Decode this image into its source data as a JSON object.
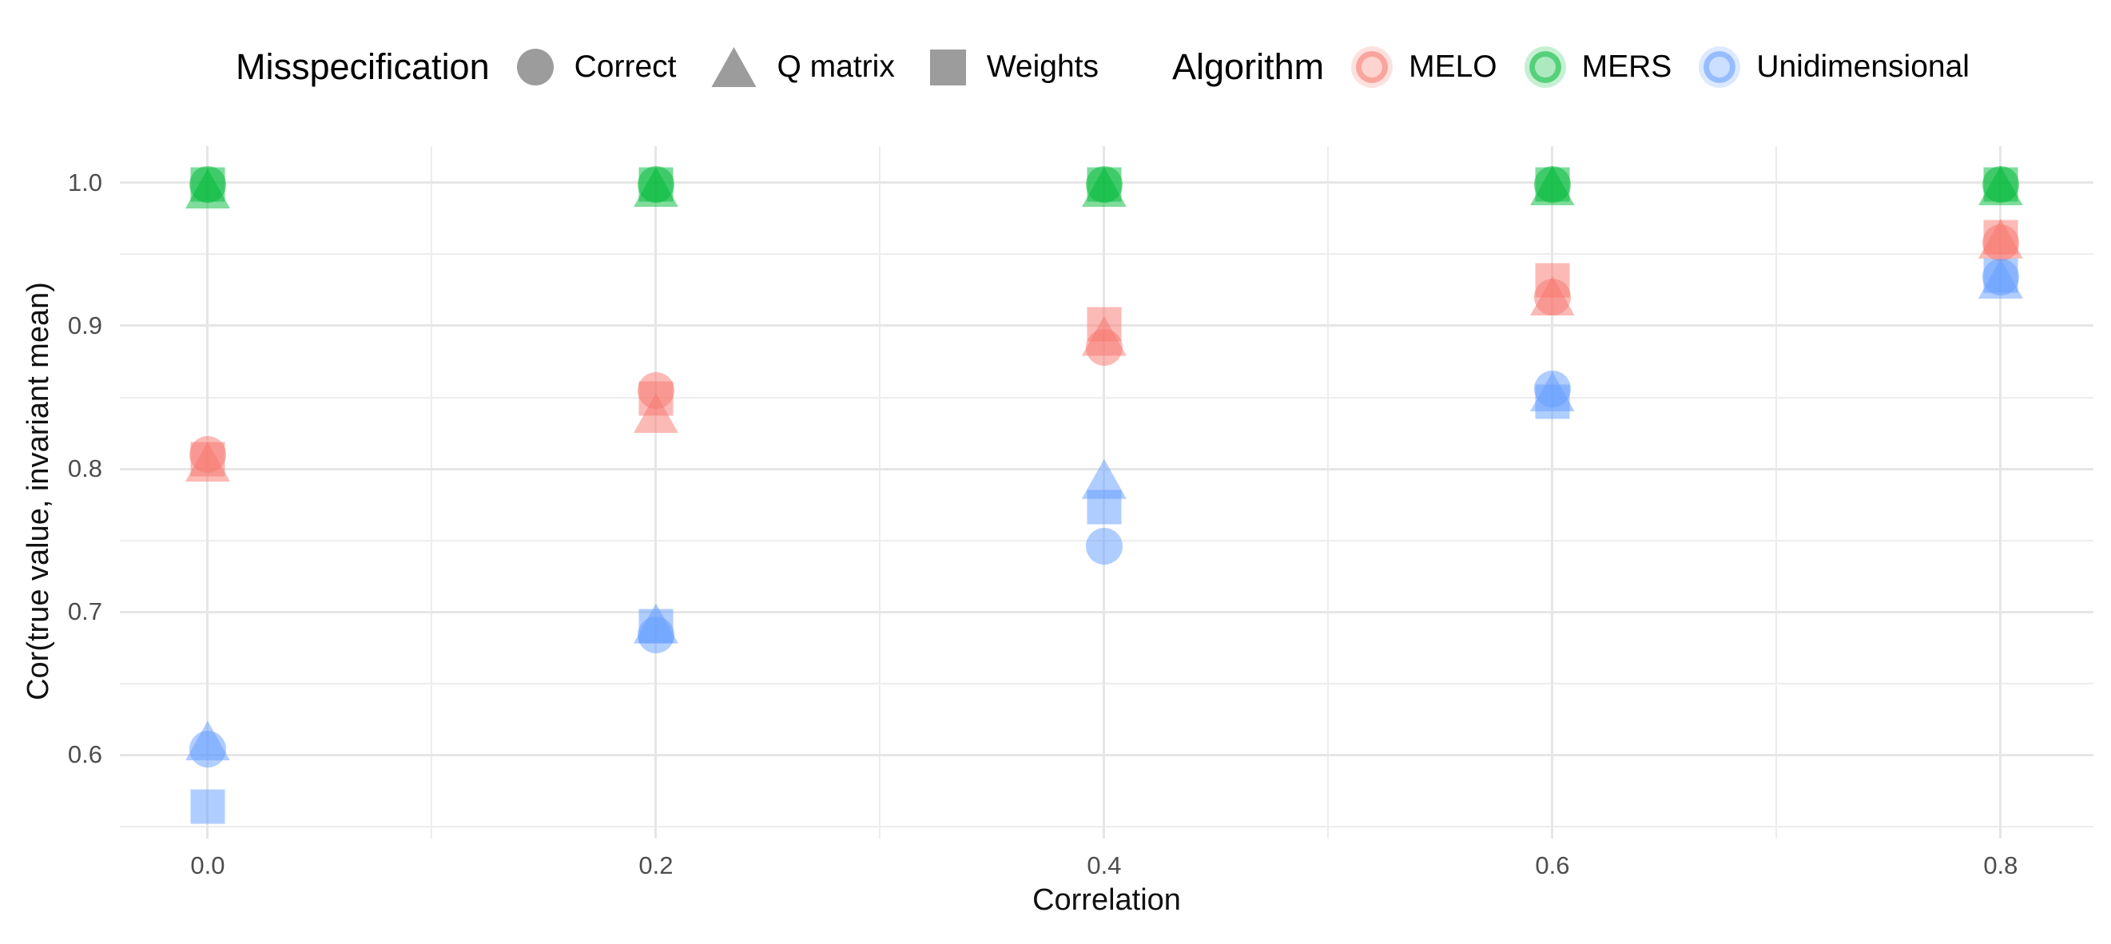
{
  "chart_data": {
    "type": "scatter",
    "title": "",
    "xlabel": "Correlation",
    "ylabel": "Cor(true value, invariant mean)",
    "grid": true,
    "legend_position": "top",
    "x_domain": [
      -0.0392,
      0.8414
    ],
    "y_domain": [
      0.5416,
      1.0256
    ],
    "x_ticks": [
      0.0,
      0.2,
      0.4,
      0.6,
      0.8
    ],
    "x_tick_labels": [
      "0.0",
      "0.2",
      "0.4",
      "0.6",
      "0.8"
    ],
    "y_ticks": [
      0.6,
      0.7,
      0.8,
      0.9,
      1.0
    ],
    "y_tick_labels": [
      "0.6",
      "0.7",
      "0.8",
      "0.9",
      "1.0"
    ],
    "x_minor_gridlines": [
      0.1,
      0.3,
      0.5,
      0.7
    ],
    "y_minor_gridlines": [
      0.55,
      0.65,
      0.75,
      0.85,
      0.95
    ],
    "categories_x": [
      0.0,
      0.2,
      0.4,
      0.6,
      0.8
    ],
    "series": [
      {
        "name": "MELO",
        "color": "#F8766D",
        "shapes": {
          "circle": [
            0.81,
            0.855,
            0.885,
            0.92,
            0.958
          ],
          "triangle": [
            0.805,
            0.839,
            0.893,
            0.921,
            0.961
          ],
          "square": [
            0.807,
            0.849,
            0.901,
            0.932,
            0.962
          ]
        }
      },
      {
        "name": "MERS",
        "color": "#00BA38",
        "shapes": {
          "circle": [
            0.999,
            0.999,
            0.999,
            0.999,
            0.999
          ],
          "triangle": [
            0.996,
            0.997,
            0.997,
            0.998,
            0.998
          ],
          "square": [
            0.999,
            0.999,
            0.999,
            0.999,
            0.999
          ]
        }
      },
      {
        "name": "Unidimensional",
        "color": "#619CFF",
        "shapes": {
          "circle": [
            0.604,
            0.684,
            0.746,
            0.856,
            0.934
          ],
          "triangle": [
            0.61,
            0.692,
            0.793,
            0.854,
            0.933
          ],
          "square": [
            0.564,
            0.69,
            0.773,
            0.847,
            0.935
          ]
        }
      }
    ],
    "point_alpha": 0.5,
    "legend": {
      "misspecification": {
        "title": "Misspecification",
        "items": [
          {
            "label": "Correct",
            "shape": "circle"
          },
          {
            "label": "Q matrix",
            "shape": "triangle"
          },
          {
            "label": "Weights",
            "shape": "square"
          }
        ]
      },
      "algorithm": {
        "title": "Algorithm",
        "items": [
          {
            "label": "MELO",
            "color": "#F8766D"
          },
          {
            "label": "MERS",
            "color": "#00BA38"
          },
          {
            "label": "Unidimensional",
            "color": "#619CFF"
          }
        ]
      }
    },
    "colors": {
      "gray_key": "#9C9C9C",
      "gridline_major": "#E6E6E6",
      "gridline_minor": "#EDEDED",
      "tick_text": "#4D4D4D",
      "title_text": "#111111"
    }
  }
}
